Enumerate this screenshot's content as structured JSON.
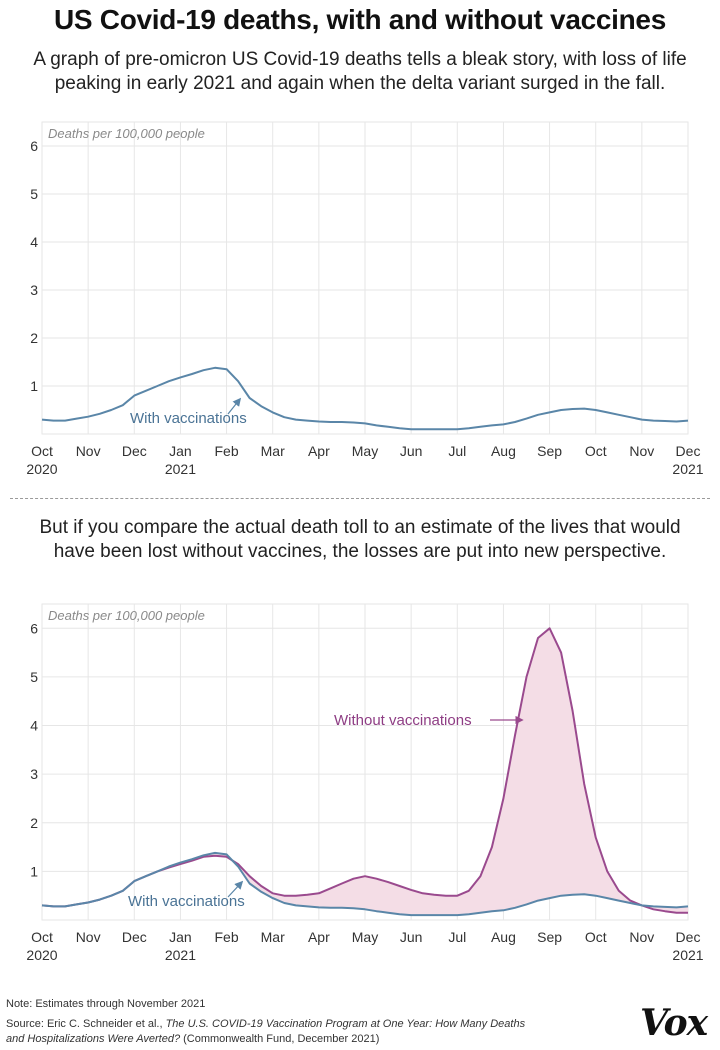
{
  "header": {
    "title": "US Covid-19 deaths, with and without vaccines",
    "subtitle": "A graph of pre-omicron US Covid-19 deaths tells a bleak story, with loss of life peaking in early 2021 and again when the delta variant surged in the fall.",
    "subtitle2": "But if you compare the actual death toll to an estimate of the lives that would have been lost without vaccines, the losses are put into new perspective."
  },
  "footer": {
    "note": "Note: Estimates through November 2021",
    "source_prefix": "Source: Eric C. Schneider et al.,",
    "source_title": "The U.S. COVID-19 Vaccination Program at One Year: How Many Deaths and Hospitalizations Were Averted?",
    "source_suffix": "(Commonwealth Fund, December 2021)",
    "logo": "Vox"
  },
  "colors": {
    "with_line": "#5a86a8",
    "without_line": "#9a4a8e",
    "fill": "#f4dde6",
    "grid": "#e6e6e6"
  },
  "chart_data": [
    {
      "type": "line",
      "ylabel": "Deaths per 100,000 people",
      "ylim": [
        0,
        6.5
      ],
      "yticks": [
        "1",
        "2",
        "3",
        "4",
        "5",
        "6"
      ],
      "x_tick_labels": [
        [
          "Oct",
          "2020"
        ],
        [
          "Nov",
          ""
        ],
        [
          "Dec",
          ""
        ],
        [
          "Jan",
          "2021"
        ],
        [
          "Feb",
          ""
        ],
        [
          "Mar",
          ""
        ],
        [
          "Apr",
          ""
        ],
        [
          "May",
          ""
        ],
        [
          "Jun",
          ""
        ],
        [
          "Jul",
          ""
        ],
        [
          "Aug",
          ""
        ],
        [
          "Sep",
          ""
        ],
        [
          "Oct",
          ""
        ],
        [
          "Nov",
          ""
        ],
        [
          "Dec",
          "2021"
        ]
      ],
      "grid": true,
      "x": [
        0,
        0.25,
        0.5,
        0.75,
        1,
        1.25,
        1.5,
        1.75,
        2,
        2.25,
        2.5,
        2.75,
        3,
        3.25,
        3.5,
        3.75,
        4,
        4.25,
        4.5,
        4.75,
        5,
        5.25,
        5.5,
        5.75,
        6,
        6.25,
        6.5,
        6.75,
        7,
        7.25,
        7.5,
        7.75,
        8,
        8.25,
        8.5,
        8.75,
        9,
        9.25,
        9.5,
        9.75,
        10,
        10.25,
        10.5,
        10.75,
        11,
        11.25,
        11.5,
        11.75,
        12,
        12.25,
        12.5,
        12.75,
        13,
        13.25,
        13.5,
        13.75,
        14
      ],
      "series": [
        {
          "name": "With vaccinations",
          "values": [
            0.3,
            0.28,
            0.28,
            0.32,
            0.36,
            0.42,
            0.5,
            0.6,
            0.8,
            0.9,
            1.0,
            1.1,
            1.18,
            1.25,
            1.33,
            1.38,
            1.35,
            1.1,
            0.75,
            0.58,
            0.45,
            0.35,
            0.3,
            0.28,
            0.26,
            0.25,
            0.25,
            0.24,
            0.22,
            0.18,
            0.15,
            0.12,
            0.1,
            0.1,
            0.1,
            0.1,
            0.1,
            0.12,
            0.15,
            0.18,
            0.2,
            0.25,
            0.32,
            0.4,
            0.45,
            0.5,
            0.52,
            0.53,
            0.5,
            0.45,
            0.4,
            0.35,
            0.3,
            0.28,
            0.27,
            0.26,
            0.28
          ]
        }
      ]
    },
    {
      "type": "area",
      "ylabel": "Deaths per 100,000 people",
      "ylim": [
        0,
        6.5
      ],
      "yticks": [
        "1",
        "2",
        "3",
        "4",
        "5",
        "6"
      ],
      "x_tick_labels": [
        [
          "Oct",
          "2020"
        ],
        [
          "Nov",
          ""
        ],
        [
          "Dec",
          ""
        ],
        [
          "Jan",
          "2021"
        ],
        [
          "Feb",
          ""
        ],
        [
          "Mar",
          ""
        ],
        [
          "Apr",
          ""
        ],
        [
          "May",
          ""
        ],
        [
          "Jun",
          ""
        ],
        [
          "Jul",
          ""
        ],
        [
          "Aug",
          ""
        ],
        [
          "Sep",
          ""
        ],
        [
          "Oct",
          ""
        ],
        [
          "Nov",
          ""
        ],
        [
          "Dec",
          "2021"
        ]
      ],
      "grid": true,
      "x": [
        0,
        0.25,
        0.5,
        0.75,
        1,
        1.25,
        1.5,
        1.75,
        2,
        2.25,
        2.5,
        2.75,
        3,
        3.25,
        3.5,
        3.75,
        4,
        4.25,
        4.5,
        4.75,
        5,
        5.25,
        5.5,
        5.75,
        6,
        6.25,
        6.5,
        6.75,
        7,
        7.25,
        7.5,
        7.75,
        8,
        8.25,
        8.5,
        8.75,
        9,
        9.25,
        9.5,
        9.75,
        10,
        10.25,
        10.5,
        10.75,
        11,
        11.25,
        11.5,
        11.75,
        12,
        12.25,
        12.5,
        12.75,
        13,
        13.25,
        13.5,
        13.75,
        14
      ],
      "series": [
        {
          "name": "With vaccinations",
          "values": [
            0.3,
            0.28,
            0.28,
            0.32,
            0.36,
            0.42,
            0.5,
            0.6,
            0.8,
            0.9,
            1.0,
            1.1,
            1.18,
            1.25,
            1.33,
            1.38,
            1.35,
            1.1,
            0.75,
            0.58,
            0.45,
            0.35,
            0.3,
            0.28,
            0.26,
            0.25,
            0.25,
            0.24,
            0.22,
            0.18,
            0.15,
            0.12,
            0.1,
            0.1,
            0.1,
            0.1,
            0.1,
            0.12,
            0.15,
            0.18,
            0.2,
            0.25,
            0.32,
            0.4,
            0.45,
            0.5,
            0.52,
            0.53,
            0.5,
            0.45,
            0.4,
            0.35,
            0.3,
            0.28,
            0.27,
            0.26,
            0.28
          ]
        },
        {
          "name": "Without vaccinations",
          "values": [
            0.3,
            0.28,
            0.28,
            0.32,
            0.36,
            0.42,
            0.5,
            0.6,
            0.8,
            0.9,
            1.0,
            1.08,
            1.15,
            1.22,
            1.3,
            1.32,
            1.3,
            1.15,
            0.9,
            0.7,
            0.55,
            0.5,
            0.5,
            0.52,
            0.55,
            0.65,
            0.75,
            0.85,
            0.9,
            0.85,
            0.78,
            0.7,
            0.62,
            0.55,
            0.52,
            0.5,
            0.5,
            0.6,
            0.9,
            1.5,
            2.5,
            3.8,
            5.0,
            5.8,
            6.0,
            5.5,
            4.3,
            2.8,
            1.7,
            1.0,
            0.6,
            0.4,
            0.3,
            0.22,
            0.18,
            0.15,
            0.15
          ]
        }
      ]
    }
  ]
}
